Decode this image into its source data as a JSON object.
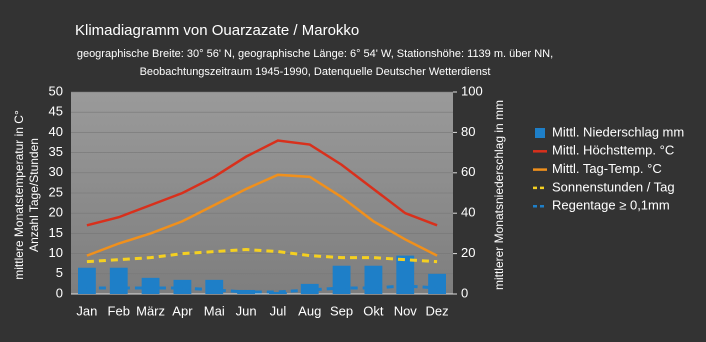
{
  "chart_data": {
    "type": "combo",
    "title": "Klimadiagramm von Ouarzazate / Marokko",
    "subtitle": [
      "geographische Breite: 30° 56' N, geographische Länge: 6° 54' W, Stationshöhe: 1139 m. über NN,",
      "Beobachtungszeitraum 1945-1990, Datenquelle Deutscher Wetterdienst"
    ],
    "y_label": [
      "mittlere Monatstemperatur in C°",
      "Anzahl Tage/Stunden"
    ],
    "y2_label": "mittlerer Monatsniederschlag in mm",
    "categories": [
      "Jan",
      "Feb",
      "März",
      "Apr",
      "Mai",
      "Jun",
      "Jul",
      "Aug",
      "Sep",
      "Okt",
      "Nov",
      "Dez"
    ],
    "series": [
      {
        "name": "Mittl. Niederschlag mm",
        "type": "bar",
        "axis": "y2",
        "color": "#1e7fc8",
        "values": [
          13,
          13,
          8,
          7,
          7,
          2,
          1,
          5,
          14,
          14,
          19,
          10
        ]
      },
      {
        "name": "Mittl. Höchsttemp. °C",
        "type": "line",
        "color": "#d8301c",
        "values": [
          17,
          19,
          22,
          25,
          29,
          34,
          38,
          37,
          32,
          26,
          20,
          17
        ]
      },
      {
        "name": "Mittl. Tag-Temp. °C",
        "type": "line",
        "color": "#f0901c",
        "values": [
          9.5,
          12.5,
          15,
          18,
          22,
          26,
          29.5,
          29,
          24,
          18,
          13.5,
          9.5
        ]
      },
      {
        "name": "Sonnenstunden / Tag",
        "type": "dashed",
        "color": "#f5d020",
        "values": [
          8,
          8.5,
          9,
          10,
          10.5,
          11,
          10.5,
          9.5,
          9,
          9,
          8.5,
          8
        ]
      },
      {
        "name": "Regentage ≥ 0,1mm",
        "type": "dashed",
        "color": "#1e7fc8",
        "values": [
          1.5,
          1.5,
          1.5,
          1.5,
          1,
          0.5,
          0.5,
          1,
          1.5,
          1.5,
          2,
          1.5
        ]
      }
    ],
    "ylim": [
      0,
      50
    ],
    "yticks": [
      0,
      5,
      10,
      15,
      20,
      25,
      30,
      35,
      40,
      45,
      50
    ],
    "y2lim": [
      0,
      100
    ],
    "y2ticks": [
      0,
      20,
      40,
      60,
      80,
      100
    ],
    "grid": true,
    "legend": "right"
  }
}
